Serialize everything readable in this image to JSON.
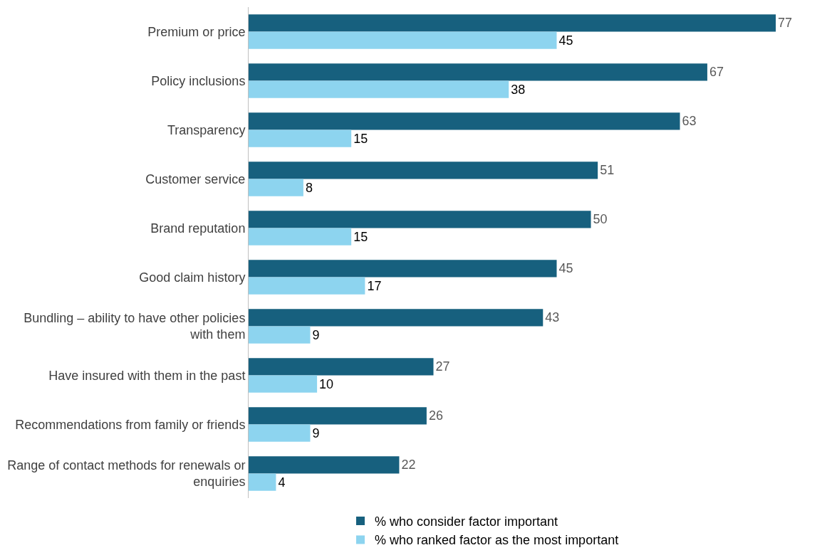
{
  "chart_data": {
    "type": "bar",
    "orientation": "horizontal",
    "categories": [
      "Premium or price",
      "Policy inclusions",
      "Transparency",
      "Customer service",
      "Brand reputation",
      "Good claim history",
      "Bundling – ability to have other policies with them",
      "Have insured with them in the past",
      "Recommendations from family or friends",
      "Range of contact methods for renewals or enquiries"
    ],
    "series": [
      {
        "name": "% who consider factor important",
        "color": "#17607e",
        "values": [
          77,
          67,
          63,
          51,
          50,
          45,
          43,
          27,
          26,
          22
        ]
      },
      {
        "name": "% who ranked factor as the most important",
        "color": "#8dd4ef",
        "values": [
          45,
          38,
          15,
          8,
          15,
          17,
          9,
          10,
          9,
          4
        ]
      }
    ],
    "data_labels": true,
    "legend": "bottom",
    "tick_labels": "y"
  }
}
